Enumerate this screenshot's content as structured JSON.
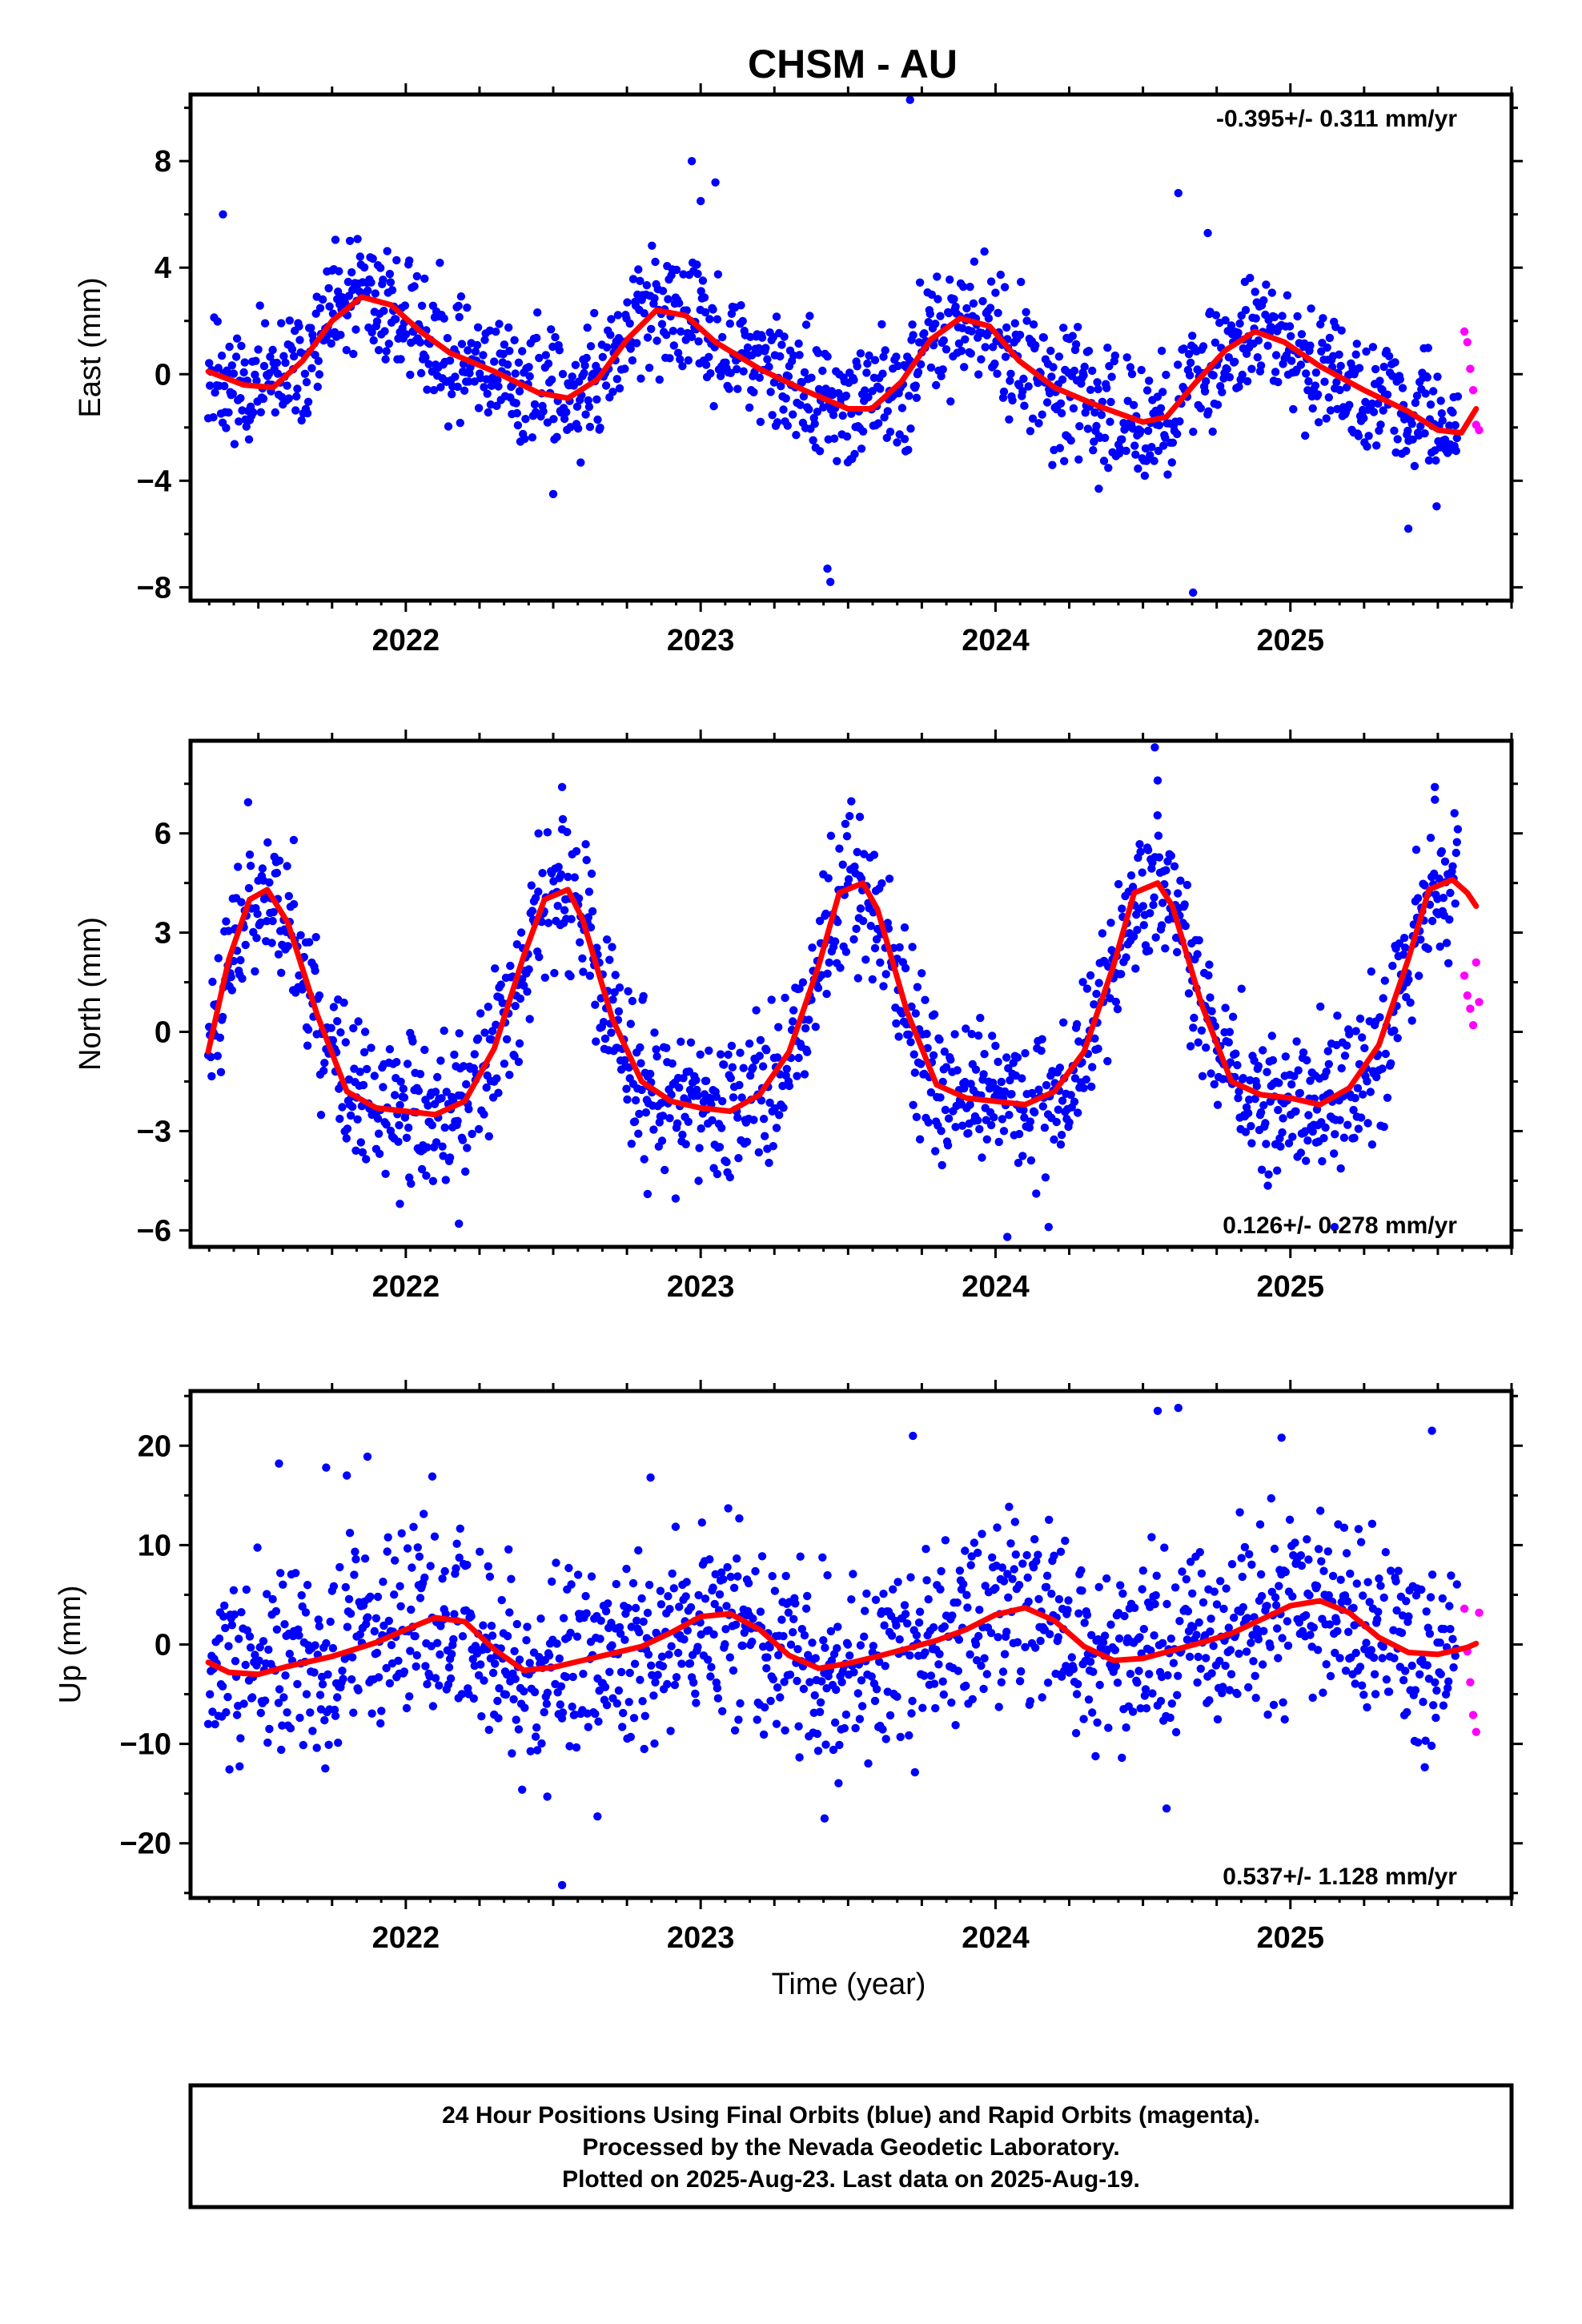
{
  "title": "CHSM - AU",
  "xlabel": "Time (year)",
  "colors": {
    "final": "#0000ff",
    "rapid": "#ff00ff",
    "model": "#ff0000"
  },
  "footer": {
    "line1": "24 Hour Positions Using Final Orbits (blue) and Rapid Orbits (magenta).",
    "line2": "Processed by the Nevada Geodetic Laboratory.",
    "line3": "Plotted on 2025-Aug-23. Last data on 2025-Aug-19."
  },
  "chart_data": [
    {
      "type": "scatter",
      "ylabel": "East (mm)",
      "rate": "-0.395+/- 0.311 mm/yr",
      "xlim": [
        2021.27,
        2025.75
      ],
      "ylim": [
        -8.5,
        10.5
      ],
      "xticks": [
        2022,
        2023,
        2024,
        2025
      ],
      "yticks": [
        -8,
        -4,
        0,
        4,
        8
      ],
      "model": {
        "x": [
          2021.33,
          2021.45,
          2021.55,
          2021.65,
          2021.75,
          2021.85,
          2021.95,
          2022.05,
          2022.15,
          2022.3,
          2022.45,
          2022.55,
          2022.65,
          2022.75,
          2022.85,
          2022.95,
          2023.05,
          2023.2,
          2023.35,
          2023.5,
          2023.58,
          2023.68,
          2023.78,
          2023.88,
          2023.98,
          2024.08,
          2024.2,
          2024.35,
          2024.5,
          2024.58,
          2024.68,
          2024.78,
          2024.88,
          2024.98,
          2025.1,
          2025.25,
          2025.4,
          2025.5,
          2025.58,
          2025.63
        ],
        "y": [
          0.1,
          -0.4,
          -0.5,
          0.5,
          2.0,
          2.9,
          2.6,
          1.6,
          0.8,
          0.1,
          -0.7,
          -0.9,
          -0.2,
          1.3,
          2.4,
          2.2,
          1.2,
          0.2,
          -0.6,
          -1.3,
          -1.3,
          -0.3,
          1.3,
          2.1,
          1.8,
          0.5,
          -0.5,
          -1.2,
          -1.8,
          -1.6,
          -0.3,
          0.9,
          1.6,
          1.2,
          0.3,
          -0.6,
          -1.4,
          -2.1,
          -2.2,
          -1.3
        ]
      },
      "final": {
        "seed": 11,
        "noise": 1.1,
        "end": 2025.57,
        "outliers": [
          [
            2021.38,
            6.0
          ],
          [
            2022.97,
            8.0
          ],
          [
            2023.0,
            6.5
          ],
          [
            2023.05,
            7.2
          ],
          [
            2023.71,
            10.3
          ],
          [
            2023.43,
            -7.3
          ],
          [
            2023.44,
            -7.8
          ],
          [
            2024.62,
            6.8
          ],
          [
            2024.67,
            -8.2
          ],
          [
            2024.72,
            5.3
          ],
          [
            2022.5,
            -4.5
          ],
          [
            2024.35,
            -4.3
          ],
          [
            2025.4,
            -5.8
          ]
        ]
      },
      "rapid": {
        "x": [
          2025.59,
          2025.6,
          2025.61,
          2025.62,
          2025.63,
          2025.64
        ],
        "y": [
          1.6,
          1.2,
          0.2,
          -0.6,
          -1.9,
          -2.1
        ]
      }
    },
    {
      "type": "scatter",
      "ylabel": "North (mm)",
      "rate": "0.126+/- 0.278 mm/yr",
      "xlim": [
        2021.27,
        2025.75
      ],
      "ylim": [
        -6.5,
        8.8
      ],
      "xticks": [
        2022,
        2023,
        2024,
        2025
      ],
      "yticks": [
        -6,
        -3,
        0,
        3,
        6
      ],
      "model": {
        "x": [
          2021.33,
          2021.4,
          2021.47,
          2021.53,
          2021.6,
          2021.7,
          2021.8,
          2021.9,
          2022.0,
          2022.1,
          2022.2,
          2022.3,
          2022.4,
          2022.47,
          2022.55,
          2022.6,
          2022.7,
          2022.8,
          2022.9,
          2023.0,
          2023.1,
          2023.2,
          2023.3,
          2023.4,
          2023.47,
          2023.55,
          2023.6,
          2023.7,
          2023.8,
          2023.9,
          2024.0,
          2024.1,
          2024.2,
          2024.3,
          2024.4,
          2024.47,
          2024.55,
          2024.6,
          2024.7,
          2024.8,
          2024.9,
          2025.0,
          2025.1,
          2025.2,
          2025.3,
          2025.4,
          2025.47,
          2025.55,
          2025.6,
          2025.63
        ],
        "y": [
          -0.6,
          2.2,
          4.0,
          4.3,
          3.3,
          0.5,
          -1.8,
          -2.3,
          -2.4,
          -2.5,
          -2.1,
          -0.5,
          2.3,
          4.0,
          4.3,
          3.4,
          0.4,
          -1.5,
          -2.1,
          -2.3,
          -2.4,
          -1.9,
          -0.6,
          2.0,
          4.2,
          4.5,
          3.7,
          0.6,
          -1.6,
          -2.0,
          -2.1,
          -2.2,
          -1.8,
          -0.6,
          2.0,
          4.2,
          4.5,
          3.8,
          0.8,
          -1.5,
          -1.9,
          -2.0,
          -2.2,
          -1.7,
          -0.4,
          2.2,
          4.3,
          4.6,
          4.2,
          3.8
        ]
      },
      "final": {
        "seed": 23,
        "noise": 1.1,
        "end": 2025.57,
        "outliers": [
          [
            2022.53,
            7.4
          ],
          [
            2023.54,
            6.5
          ],
          [
            2024.54,
            8.6
          ],
          [
            2024.55,
            7.6
          ],
          [
            2025.49,
            7.4
          ],
          [
            2021.98,
            -5.2
          ],
          [
            2022.18,
            -5.8
          ],
          [
            2022.82,
            -4.9
          ],
          [
            2024.04,
            -6.2
          ],
          [
            2024.18,
            -5.9
          ],
          [
            2025.15,
            -5.9
          ],
          [
            2021.62,
            5.8
          ],
          [
            2022.45,
            6.0
          ]
        ]
      },
      "rapid": {
        "x": [
          2025.59,
          2025.6,
          2025.61,
          2025.62,
          2025.63,
          2025.64
        ],
        "y": [
          1.7,
          1.1,
          0.7,
          0.2,
          2.1,
          0.9
        ]
      }
    },
    {
      "type": "scatter",
      "ylabel": "Up (mm)",
      "rate": "0.537+/- 1.128 mm/yr",
      "xlim": [
        2021.27,
        2025.75
      ],
      "ylim": [
        -25.5,
        25.5
      ],
      "xticks": [
        2022,
        2023,
        2024,
        2025
      ],
      "yticks": [
        -20,
        -10,
        0,
        10,
        20
      ],
      "model": {
        "x": [
          2021.33,
          2021.4,
          2021.5,
          2021.6,
          2021.75,
          2021.9,
          2022.0,
          2022.1,
          2022.2,
          2022.3,
          2022.4,
          2022.5,
          2022.6,
          2022.7,
          2022.8,
          2022.9,
          2023.0,
          2023.1,
          2023.2,
          2023.3,
          2023.4,
          2023.5,
          2023.6,
          2023.7,
          2023.8,
          2023.9,
          2024.0,
          2024.1,
          2024.2,
          2024.3,
          2024.4,
          2024.5,
          2024.6,
          2024.7,
          2024.8,
          2024.9,
          2025.0,
          2025.1,
          2025.2,
          2025.3,
          2025.4,
          2025.5,
          2025.6,
          2025.63
        ],
        "y": [
          -1.8,
          -2.8,
          -3.0,
          -2.2,
          -1.2,
          0.2,
          1.5,
          2.7,
          2.3,
          -0.5,
          -2.6,
          -2.3,
          -1.6,
          -0.9,
          -0.2,
          1.2,
          2.8,
          3.1,
          1.5,
          -1.1,
          -2.4,
          -1.9,
          -1.2,
          -0.4,
          0.4,
          1.5,
          3.0,
          3.7,
          2.4,
          -0.2,
          -1.6,
          -1.4,
          -0.6,
          0.2,
          1.1,
          2.5,
          3.9,
          4.4,
          3.2,
          0.7,
          -0.8,
          -1.0,
          -0.3,
          0.1
        ]
      },
      "final": {
        "seed": 37,
        "noise": 4.6,
        "end": 2025.57,
        "outliers": [
          [
            2021.57,
            18.2
          ],
          [
            2021.73,
            17.8
          ],
          [
            2021.8,
            17.0
          ],
          [
            2021.87,
            18.9
          ],
          [
            2022.09,
            16.9
          ],
          [
            2022.83,
            16.8
          ],
          [
            2023.72,
            21.0
          ],
          [
            2024.55,
            23.5
          ],
          [
            2024.62,
            23.8
          ],
          [
            2024.97,
            20.8
          ],
          [
            2025.48,
            21.5
          ],
          [
            2022.53,
            -24.2
          ],
          [
            2022.65,
            -17.3
          ],
          [
            2023.42,
            -17.5
          ],
          [
            2024.58,
            -16.5
          ],
          [
            2022.48,
            -15.3
          ]
        ]
      },
      "rapid": {
        "x": [
          2025.59,
          2025.6,
          2025.61,
          2025.62,
          2025.63,
          2025.64
        ],
        "y": [
          3.6,
          -0.7,
          -3.8,
          -7.1,
          -8.8,
          3.2
        ]
      }
    }
  ]
}
